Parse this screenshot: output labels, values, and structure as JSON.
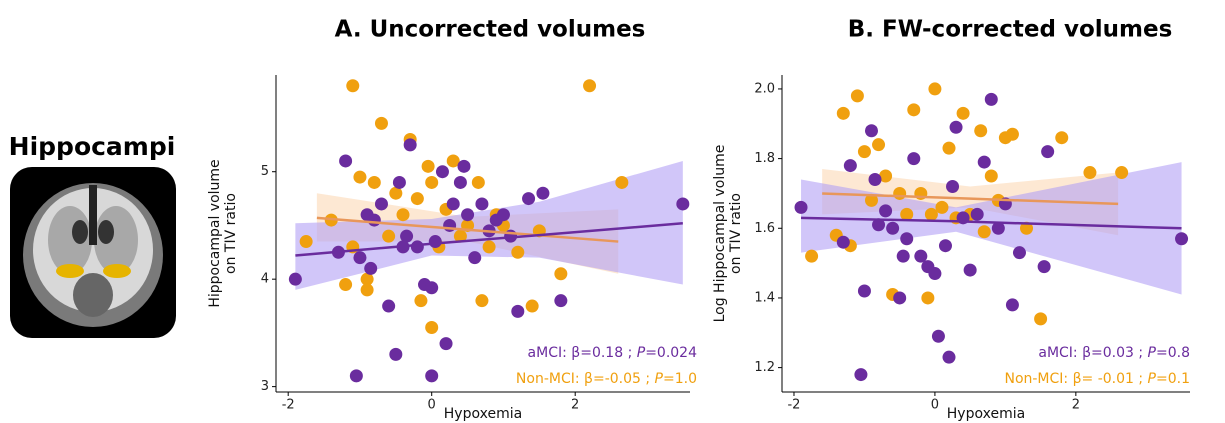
{
  "panel_label": "Hippocampi",
  "chart_data": [
    {
      "type": "scatter",
      "title": "A. Uncorrected volumes",
      "x_label": "Hypoxemia",
      "y_label": [
        "Hippocampal volume",
        "on TIV ratio"
      ],
      "xlim": [
        -2.17,
        3.6
      ],
      "ylim": [
        2.95,
        5.9
      ],
      "xticks": [
        -2,
        0,
        2
      ],
      "yticks": [
        3,
        4,
        5
      ],
      "fits": [
        {
          "color": "#e8975a",
          "band_color": "#fbd9b5",
          "x": [
            -1.6,
            0.5,
            2.6
          ],
          "values": [
            4.57,
            4.46,
            4.35
          ],
          "lower": [
            4.35,
            4.35,
            4.05
          ],
          "upper": [
            4.8,
            4.58,
            4.65
          ]
        },
        {
          "color": "#6a2c9e",
          "band_color": "#b3a0f5",
          "x": [
            -1.9,
            0,
            1.5,
            3.5
          ],
          "values": [
            4.22,
            4.33,
            4.41,
            4.52
          ],
          "lower": [
            3.9,
            4.22,
            4.2,
            3.95
          ],
          "upper": [
            4.52,
            4.56,
            4.72,
            5.1
          ]
        }
      ],
      "series": [
        {
          "color": "#f0a00f",
          "x": [
            -1.75,
            -1.4,
            -1.1,
            -1.1,
            -1.0,
            -0.9,
            -0.8,
            -0.7,
            -0.6,
            -0.5,
            -0.4,
            -0.3,
            -0.2,
            -0.15,
            0.0,
            0.0,
            0.1,
            0.2,
            0.3,
            0.4,
            0.5,
            0.7,
            0.8,
            0.9,
            1.0,
            1.2,
            1.4,
            1.5,
            1.8,
            2.2,
            2.65,
            -1.2,
            -0.9,
            0.65,
            -0.05
          ],
          "values": [
            4.35,
            4.55,
            5.8,
            4.3,
            4.95,
            4.0,
            4.9,
            5.45,
            4.4,
            4.8,
            4.6,
            5.3,
            4.75,
            3.8,
            4.9,
            3.55,
            4.3,
            4.65,
            5.1,
            4.4,
            4.5,
            3.8,
            4.3,
            4.6,
            4.5,
            4.25,
            3.75,
            4.45,
            4.05,
            5.8,
            4.9,
            3.95,
            3.9,
            4.9,
            5.05
          ]
        },
        {
          "color": "#6a2c9e",
          "x": [
            -1.9,
            -1.3,
            -1.2,
            -1.05,
            -1.0,
            -0.9,
            -0.85,
            -0.8,
            -0.6,
            -0.5,
            -0.45,
            -0.4,
            -0.35,
            -0.3,
            -0.2,
            -0.1,
            0.0,
            0.0,
            0.05,
            0.15,
            0.2,
            0.3,
            0.4,
            0.5,
            0.6,
            0.7,
            0.8,
            0.9,
            1.0,
            1.1,
            1.2,
            1.35,
            1.55,
            1.8,
            3.5,
            0.45,
            -0.7,
            0.25
          ],
          "values": [
            4.0,
            4.25,
            5.1,
            3.1,
            4.2,
            4.6,
            4.1,
            4.55,
            3.75,
            3.3,
            4.9,
            4.3,
            4.4,
            5.25,
            4.3,
            3.95,
            3.1,
            3.92,
            4.35,
            5.0,
            3.4,
            4.7,
            4.9,
            4.6,
            4.2,
            4.7,
            4.45,
            4.55,
            4.6,
            4.4,
            3.7,
            4.75,
            4.8,
            3.8,
            4.7,
            5.05,
            4.7,
            4.5
          ]
        }
      ],
      "annotations": [
        {
          "color": "#6a2c9e",
          "parts": [
            "aMCI: β=0.18 ; ",
            "P",
            "=0.024"
          ]
        },
        {
          "color": "#f0a00f",
          "parts": [
            "Non-MCI: β=-0.05 ; ",
            "P",
            "=1.0"
          ]
        }
      ]
    },
    {
      "type": "scatter",
      "title": "B. FW-corrected volumes",
      "x_label": "Hypoxemia",
      "y_label": [
        "Log Hippocampal volume",
        "on TIV ratio"
      ],
      "xlim": [
        -2.17,
        3.62
      ],
      "ylim": [
        1.13,
        2.04
      ],
      "xticks": [
        -2,
        0,
        2
      ],
      "yticks": [
        1.2,
        1.4,
        1.6,
        1.8,
        {
          "value": 2,
          "label": "2.0"
        }
      ],
      "fits": [
        {
          "color": "#e8975a",
          "band_color": "#fbd9b5",
          "x": [
            -1.6,
            0.5,
            2.6
          ],
          "values": [
            1.7,
            1.685,
            1.67
          ],
          "lower": [
            1.64,
            1.66,
            1.58
          ],
          "upper": [
            1.77,
            1.72,
            1.76
          ]
        },
        {
          "color": "#6a2c9e",
          "band_color": "#b3a0f5",
          "x": [
            -1.9,
            0.3,
            3.5
          ],
          "values": [
            1.63,
            1.62,
            1.6
          ],
          "lower": [
            1.53,
            1.59,
            1.41
          ],
          "upper": [
            1.74,
            1.66,
            1.79
          ]
        }
      ],
      "series": [
        {
          "color": "#f0a00f",
          "x": [
            -1.75,
            -1.4,
            -1.3,
            -1.1,
            -1.0,
            -0.9,
            -0.8,
            -0.7,
            -0.6,
            -0.5,
            -0.4,
            -0.3,
            -0.2,
            -0.1,
            0.0,
            0.1,
            0.2,
            0.3,
            0.4,
            0.5,
            0.7,
            0.8,
            0.9,
            1.0,
            1.1,
            1.3,
            1.5,
            1.8,
            2.2,
            2.65,
            -1.2,
            0.65,
            -0.05
          ],
          "values": [
            1.52,
            1.58,
            1.93,
            1.98,
            1.82,
            1.68,
            1.84,
            1.75,
            1.41,
            1.7,
            1.64,
            1.94,
            1.7,
            1.4,
            2.0,
            1.66,
            1.83,
            1.63,
            1.93,
            1.64,
            1.59,
            1.75,
            1.68,
            1.86,
            1.87,
            1.6,
            1.34,
            1.86,
            1.76,
            1.76,
            1.55,
            1.88,
            1.64
          ]
        },
        {
          "color": "#6a2c9e",
          "x": [
            -1.9,
            -1.3,
            -1.2,
            -1.05,
            -1.0,
            -0.9,
            -0.85,
            -0.8,
            -0.6,
            -0.5,
            -0.45,
            -0.4,
            -0.3,
            -0.2,
            -0.1,
            0.0,
            0.05,
            0.15,
            0.2,
            0.3,
            0.4,
            0.5,
            0.6,
            0.7,
            0.8,
            0.9,
            1.0,
            1.1,
            1.2,
            1.55,
            1.6,
            3.5,
            -0.7,
            0.25
          ],
          "values": [
            1.66,
            1.56,
            1.78,
            1.18,
            1.42,
            1.88,
            1.74,
            1.61,
            1.6,
            1.4,
            1.52,
            1.57,
            1.8,
            1.52,
            1.49,
            1.47,
            1.29,
            1.55,
            1.23,
            1.89,
            1.63,
            1.48,
            1.64,
            1.79,
            1.97,
            1.6,
            1.67,
            1.38,
            1.53,
            1.49,
            1.82,
            1.57,
            1.65,
            1.72
          ]
        }
      ],
      "annotations": [
        {
          "color": "#6a2c9e",
          "parts": [
            "aMCI: β=0.03 ; ",
            "P",
            "=0.8"
          ]
        },
        {
          "color": "#f0a00f",
          "parts": [
            "Non-MCI: β= -0.01 ; ",
            "P",
            "=0.1"
          ]
        }
      ]
    }
  ]
}
